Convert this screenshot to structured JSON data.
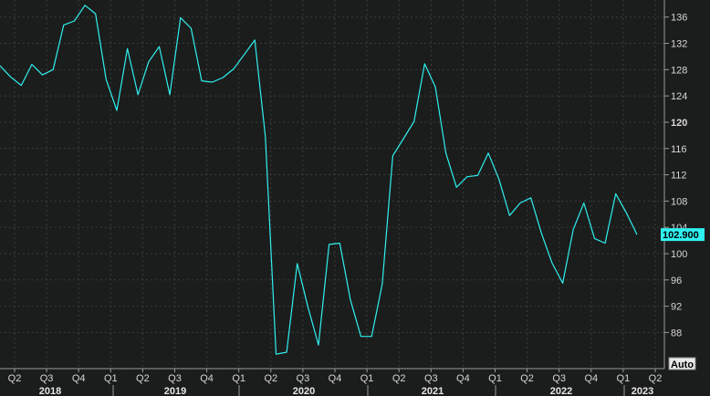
{
  "chart_data": {
    "type": "line",
    "grid": true,
    "ylim": [
      82.5,
      138.6
    ],
    "yticks": [
      88,
      92,
      96,
      100,
      104,
      108,
      112,
      116,
      120,
      124,
      128,
      132,
      136
    ],
    "yticks_bold": [
      120
    ],
    "quarter_ticks": [
      "Q2",
      "Q3",
      "Q4",
      "Q1",
      "Q2",
      "Q3",
      "Q4",
      "Q1",
      "Q2",
      "Q3",
      "Q4",
      "Q1",
      "Q2",
      "Q3",
      "Q4",
      "Q1",
      "Q2",
      "Q3",
      "Q4",
      "Q1",
      "Q2"
    ],
    "year_labels": [
      "2018",
      "2019",
      "2020",
      "2021",
      "2022",
      "2023"
    ],
    "last_value_label": "102.900",
    "auto_label": "Auto",
    "colors": {
      "line": "#2ff0f0",
      "background": "#1b1d1c",
      "grid": "#3a3d3b",
      "tag": "#2ff0f0"
    },
    "series": [
      {
        "values": [
          128.6,
          126.9,
          125.6,
          128.8,
          127.2,
          128.0,
          134.8,
          135.4,
          137.8,
          136.5,
          126.5,
          121.8,
          131.2,
          124.2,
          129.2,
          131.5,
          124.2,
          135.9,
          134.3,
          126.3,
          126.1,
          126.8,
          128.1,
          130.3,
          132.5,
          117.8,
          84.7,
          85.0,
          98.5,
          91.9,
          86.1,
          101.4,
          101.6,
          93.0,
          87.4,
          87.4,
          95.3,
          114.9,
          117.5,
          120.1,
          128.9,
          125.4,
          115.3,
          110.1,
          111.7,
          111.9,
          115.3,
          111.3,
          105.8,
          107.7,
          108.5,
          103.1,
          98.6,
          95.5,
          103.7,
          107.7,
          102.3,
          101.6,
          109.1,
          106.2,
          102.9
        ]
      }
    ]
  }
}
